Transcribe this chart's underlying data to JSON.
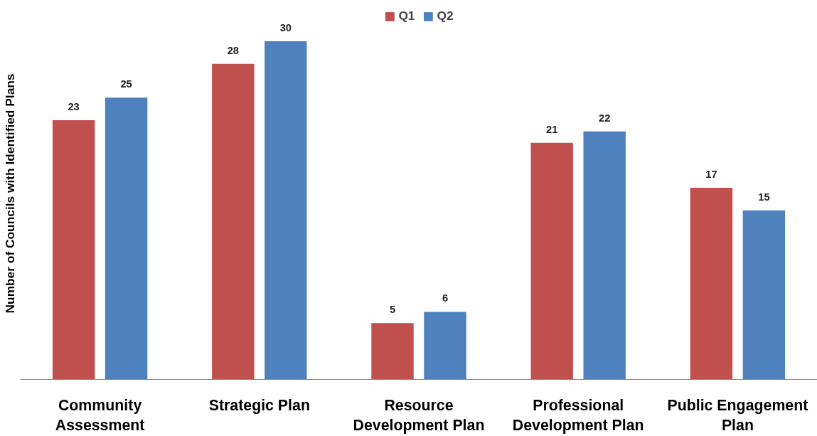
{
  "chart_data": {
    "type": "bar",
    "ylabel": "Number of Councils with Identified Plans",
    "categories": [
      "Community\nAssessment",
      "Strategic Plan",
      "Resource\nDevelopment Plan",
      "Professional\nDevelopment Plan",
      "Public Engagement\nPlan"
    ],
    "series": [
      {
        "name": "Q1",
        "color": "#c0504d",
        "values": [
          23,
          28,
          5,
          21,
          17
        ]
      },
      {
        "name": "Q2",
        "color": "#4f81bd",
        "values": [
          25,
          30,
          6,
          22,
          15
        ]
      }
    ],
    "data_labels": true,
    "grid": false,
    "legend": "top",
    "tick_labels": "x"
  }
}
